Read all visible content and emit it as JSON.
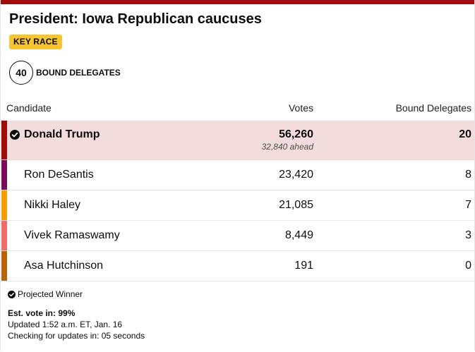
{
  "race": {
    "title": "President: Iowa Republican caucuses",
    "badge": "KEY RACE",
    "delegates_count": "40",
    "delegates_label": "BOUND DELEGATES"
  },
  "table": {
    "headers": {
      "candidate": "Candidate",
      "votes": "Votes",
      "delegates": "Bound Delegates"
    },
    "rows": [
      {
        "name": "Donald Trump",
        "votes": "56,260",
        "ahead": "32,840 ahead",
        "delegates": "20",
        "color": "#a00c0c",
        "winner": true
      },
      {
        "name": "Ron DeSantis",
        "votes": "23,420",
        "delegates": "8",
        "color": "#7a0b5a"
      },
      {
        "name": "Nikki Haley",
        "votes": "21,085",
        "delegates": "7",
        "color": "#f59c00"
      },
      {
        "name": "Vivek Ramaswamy",
        "votes": "8,449",
        "delegates": "3",
        "color": "#f26b6b"
      },
      {
        "name": "Asa Hutchinson",
        "votes": "191",
        "delegates": "0",
        "color": "#b8650a"
      }
    ]
  },
  "footer": {
    "projected": "Projected Winner",
    "est_vote": "Est. vote in: 99%",
    "updated": "Updated 1:52 a.m. ET, Jan. 16",
    "checking": "Checking for updates in: 05 seconds"
  },
  "colors": {
    "accent": "#a00c0c",
    "badge": "#f7c531",
    "winner_bg": "#f3dcdc"
  }
}
